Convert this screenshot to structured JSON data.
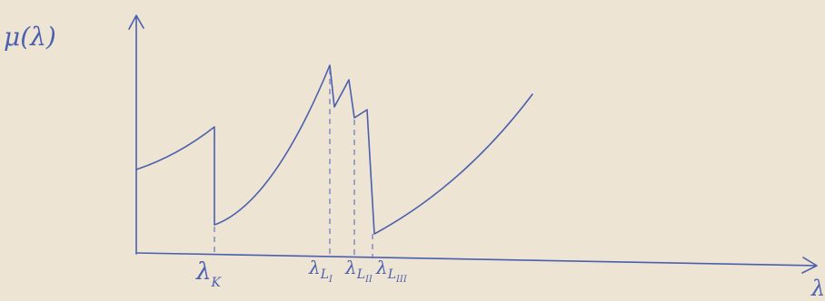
{
  "axes": {
    "y_label": "μ(λ)",
    "x_label": "λ"
  },
  "edges": [
    {
      "symbol": "λ",
      "sub": "K"
    },
    {
      "symbol": "λ",
      "sub": "L",
      "subsub": "I"
    },
    {
      "symbol": "λ",
      "sub": "L",
      "subsub": "II"
    },
    {
      "symbol": "λ",
      "sub": "L",
      "subsub": "III"
    }
  ]
}
